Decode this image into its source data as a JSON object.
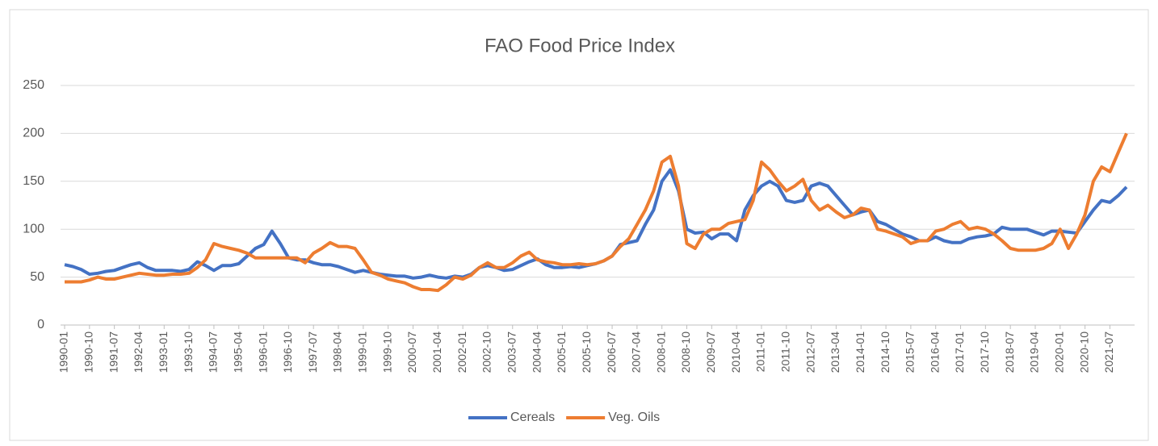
{
  "chart_data": {
    "type": "line",
    "title": "FAO Food Price Index",
    "categories": [
      "1990-01",
      null,
      null,
      "1990-10",
      null,
      null,
      "1991-07",
      null,
      null,
      "1992-04",
      null,
      null,
      "1993-01",
      null,
      null,
      "1993-10",
      null,
      null,
      "1994-07",
      null,
      null,
      "1995-04",
      null,
      null,
      "1996-01",
      null,
      null,
      "1996-10",
      null,
      null,
      "1997-07",
      null,
      null,
      "1998-04",
      null,
      null,
      "1999-01",
      null,
      null,
      "1999-10",
      null,
      null,
      "2000-07",
      null,
      null,
      "2001-04",
      null,
      null,
      "2002-01",
      null,
      null,
      "2002-10",
      null,
      null,
      "2003-07",
      null,
      null,
      "2004-04",
      null,
      null,
      "2005-01",
      null,
      null,
      "2005-10",
      null,
      null,
      "2006-07",
      null,
      null,
      "2007-04",
      null,
      null,
      "2008-01",
      null,
      null,
      "2008-10",
      null,
      null,
      "2009-07",
      null,
      null,
      "2010-04",
      null,
      null,
      "2011-01",
      null,
      null,
      "2011-10",
      null,
      null,
      "2012-07",
      null,
      null,
      "2013-04",
      null,
      null,
      "2014-01",
      null,
      null,
      "2014-10",
      null,
      null,
      "2015-07",
      null,
      null,
      "2016-04",
      null,
      null,
      "2017-01",
      null,
      null,
      "2017-10",
      null,
      null,
      "2018-07",
      null,
      null,
      "2019-04",
      null,
      null,
      "2020-01",
      null,
      null,
      "2020-10",
      null,
      null,
      "2021-07",
      null,
      null
    ],
    "series": [
      {
        "name": "Cereals",
        "color": "#4472c4",
        "values": [
          63,
          61,
          58,
          53,
          54,
          56,
          57,
          60,
          63,
          65,
          60,
          57,
          57,
          57,
          56,
          58,
          66,
          62,
          57,
          62,
          62,
          64,
          72,
          80,
          84,
          98,
          85,
          70,
          68,
          68,
          65,
          63,
          63,
          61,
          58,
          55,
          57,
          55,
          53,
          52,
          51,
          51,
          49,
          50,
          52,
          50,
          49,
          51,
          50,
          53,
          60,
          62,
          60,
          57,
          58,
          62,
          66,
          69,
          63,
          60,
          60,
          61,
          60,
          62,
          64,
          67,
          72,
          84,
          86,
          88,
          105,
          120,
          150,
          162,
          140,
          100,
          96,
          97,
          90,
          95,
          95,
          88,
          120,
          135,
          145,
          150,
          145,
          130,
          128,
          130,
          145,
          148,
          145,
          135,
          125,
          115,
          118,
          120,
          108,
          105,
          100,
          95,
          92,
          88,
          88,
          92,
          88,
          86,
          86,
          90,
          92,
          93,
          95,
          102,
          100,
          100,
          100,
          97,
          94,
          98,
          98,
          97,
          96,
          108,
          120,
          130,
          128,
          135,
          144
        ]
      },
      {
        "name": "Veg. Oils",
        "color": "#ed7d31",
        "values": [
          45,
          45,
          45,
          47,
          50,
          48,
          48,
          50,
          52,
          54,
          53,
          52,
          52,
          53,
          53,
          54,
          60,
          68,
          85,
          82,
          80,
          78,
          75,
          70,
          70,
          70,
          70,
          70,
          70,
          65,
          75,
          80,
          86,
          82,
          82,
          80,
          68,
          55,
          52,
          48,
          46,
          44,
          40,
          37,
          37,
          36,
          42,
          50,
          48,
          52,
          60,
          65,
          60,
          60,
          65,
          72,
          76,
          68,
          66,
          65,
          63,
          63,
          64,
          63,
          64,
          67,
          72,
          82,
          90,
          105,
          120,
          140,
          170,
          176,
          145,
          85,
          80,
          95,
          100,
          100,
          106,
          108,
          110,
          130,
          170,
          162,
          150,
          140,
          145,
          152,
          130,
          120,
          125,
          118,
          112,
          115,
          122,
          120,
          100,
          98,
          95,
          92,
          85,
          88,
          88,
          98,
          100,
          105,
          108,
          100,
          102,
          100,
          95,
          88,
          80,
          78,
          78,
          78,
          80,
          85,
          100,
          80,
          95,
          115,
          150,
          165,
          160,
          180,
          200
        ]
      }
    ],
    "ylim": [
      0,
      250
    ],
    "yticks": [
      0,
      50,
      100,
      150,
      200,
      250
    ],
    "grid": true,
    "legend": "bottom"
  }
}
